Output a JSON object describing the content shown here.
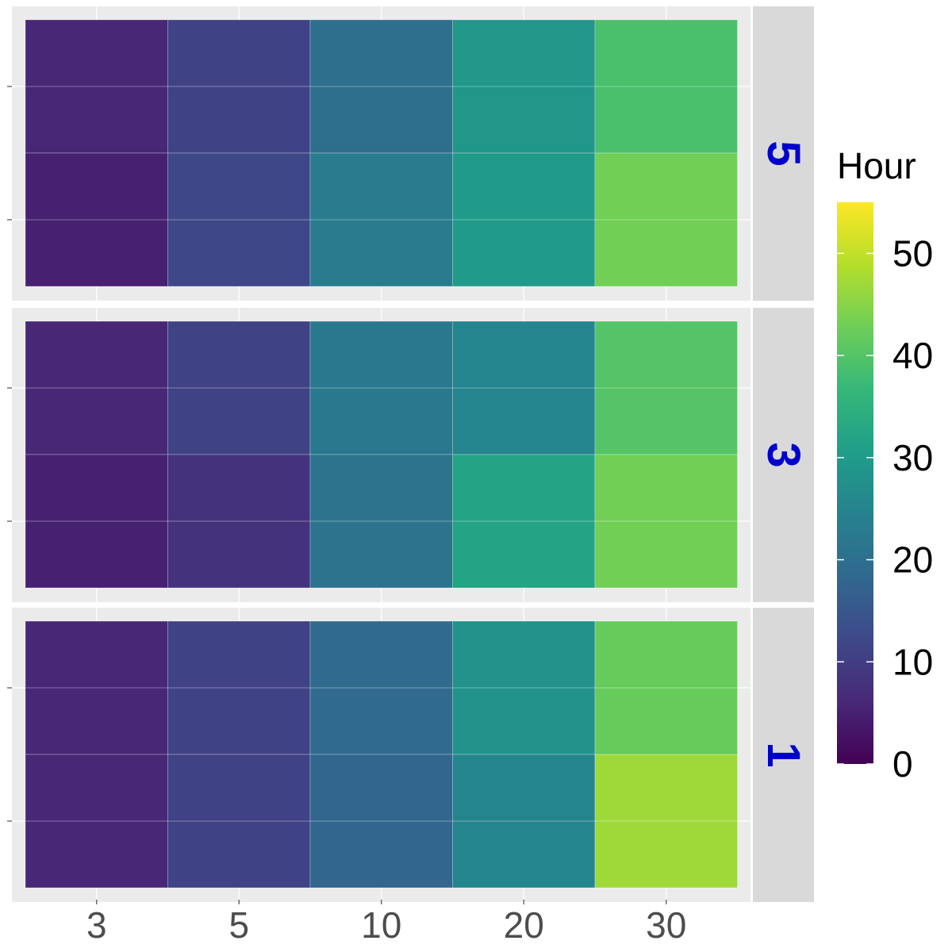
{
  "chart_data": {
    "type": "heatmap",
    "title": "",
    "xlabel": "",
    "ylabel": "",
    "x_categories": [
      "3",
      "5",
      "10",
      "20",
      "30"
    ],
    "rows_per_panel": 2,
    "panels": [
      {
        "label": "5",
        "rows": [
          [
            6,
            11,
            20,
            29,
            39
          ],
          [
            5,
            12,
            23,
            30,
            43
          ]
        ]
      },
      {
        "label": "3",
        "rows": [
          [
            6,
            11,
            22,
            25,
            40
          ],
          [
            5,
            8,
            21,
            32,
            43
          ]
        ]
      },
      {
        "label": "1",
        "rows": [
          [
            6,
            11,
            19,
            28,
            42
          ],
          [
            6,
            11,
            18,
            25,
            47
          ]
        ]
      }
    ],
    "legend": {
      "title": "Hour",
      "placement": "right",
      "ticks": [
        0,
        10,
        20,
        30,
        40,
        50
      ],
      "range": [
        0,
        55
      ]
    },
    "colors": {
      "panel_background": "#ebebeb",
      "gridline": "#ffffff",
      "strip_background": "#d9d9d9",
      "strip_text": "#0000cc",
      "viridis": [
        "#440154",
        "#482878",
        "#3e4989",
        "#31688e",
        "#26828e",
        "#1f9e89",
        "#35b779",
        "#6ece58",
        "#b5de2b",
        "#fde725"
      ]
    }
  }
}
